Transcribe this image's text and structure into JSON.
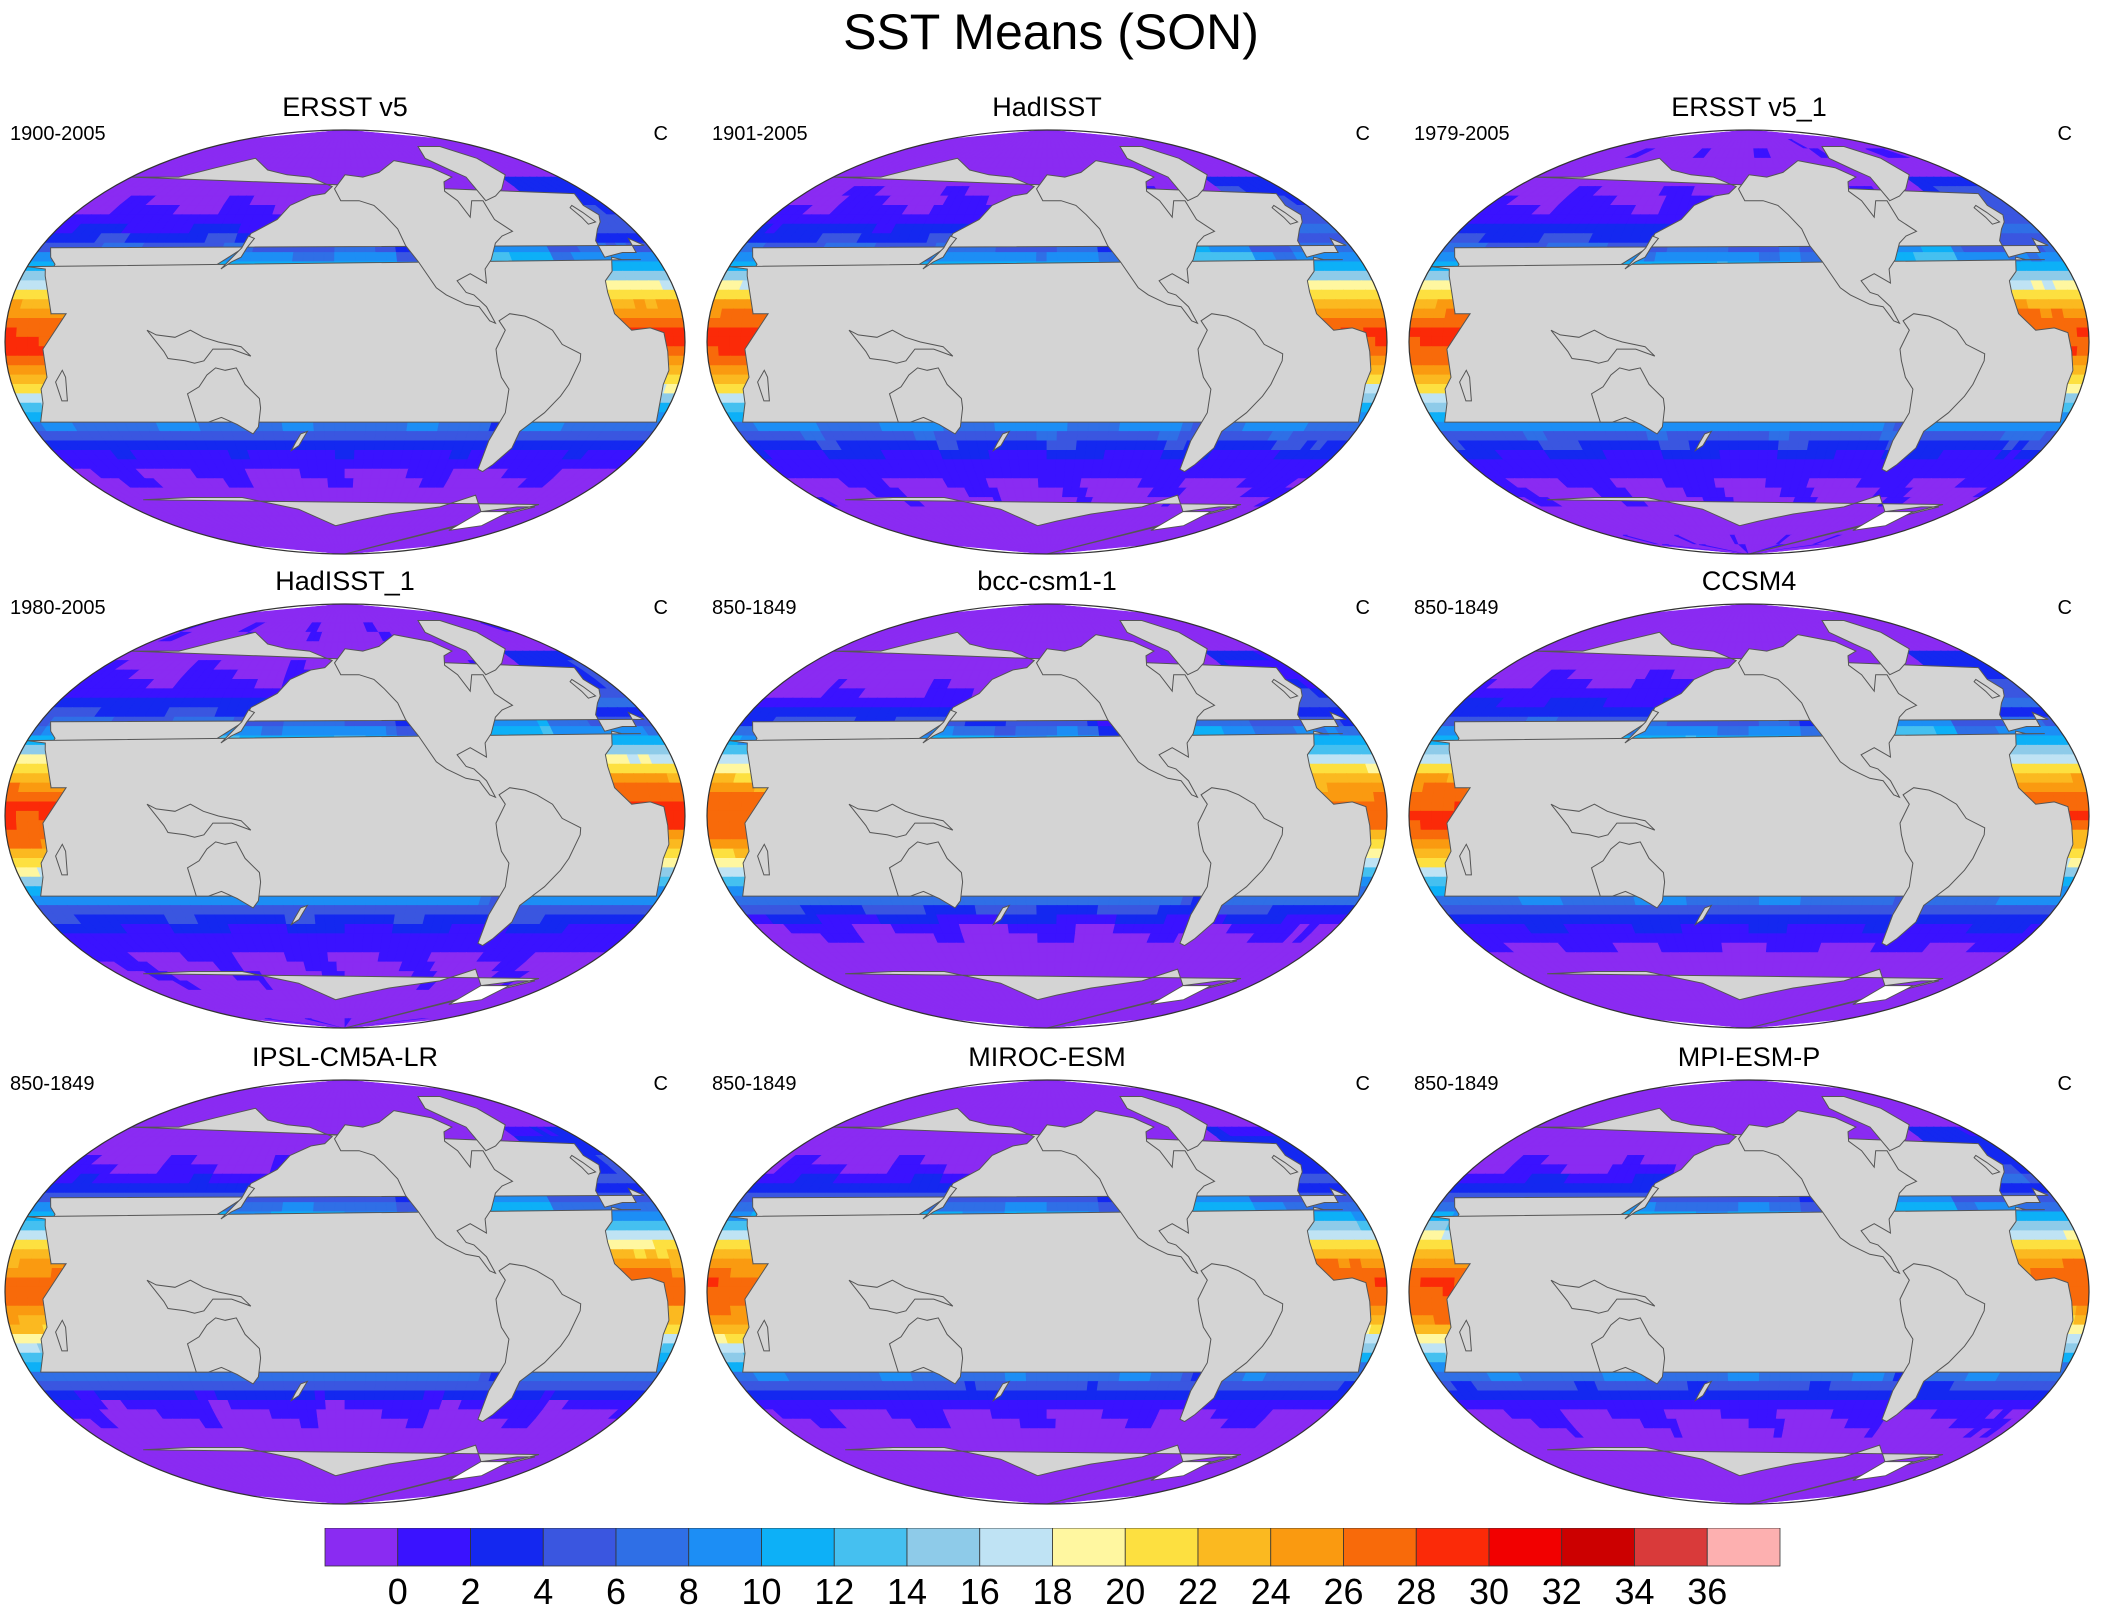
{
  "title": "SST Means (SON)",
  "units": "C",
  "colorbar": {
    "levels": [
      "0",
      "2",
      "4",
      "6",
      "8",
      "10",
      "12",
      "14",
      "16",
      "18",
      "20",
      "22",
      "24",
      "26",
      "28",
      "30",
      "32",
      "34",
      "36"
    ],
    "colors": [
      "#8a2bf2",
      "#3a12ff",
      "#1428f0",
      "#3a56e0",
      "#2f6fe6",
      "#1c8ef5",
      "#0db0f7",
      "#45c0f0",
      "#8ecbe9",
      "#bfe3f4",
      "#fff7a0",
      "#fde040",
      "#fbb920",
      "#fa9a10",
      "#f86a0a",
      "#fb2a08",
      "#f20000",
      "#cc0000",
      "#d93a3a",
      "#fdb0b0"
    ]
  },
  "palette": {
    "land": "#d4d4d4",
    "coast": "#555555",
    "ice": "#ffffff"
  },
  "panels": [
    {
      "title": "ERSST v5",
      "period": "1900-2005",
      "units": "C",
      "resolution": "fine"
    },
    {
      "title": "HadISST",
      "period": "1901-2005",
      "units": "C",
      "resolution": "fine"
    },
    {
      "title": "ERSST v5_1",
      "period": "1979-2005",
      "units": "C",
      "resolution": "fine"
    },
    {
      "title": "HadISST_1",
      "period": "1980-2005",
      "units": "C",
      "resolution": "fine"
    },
    {
      "title": "bcc-csm1-1",
      "period": "850-1849",
      "units": "C",
      "resolution": "coarse"
    },
    {
      "title": "CCSM4",
      "period": "850-1849",
      "units": "C",
      "resolution": "fine"
    },
    {
      "title": "IPSL-CM5A-LR",
      "period": "850-1849",
      "units": "C",
      "resolution": "coarse"
    },
    {
      "title": "MIROC-ESM",
      "period": "850-1849",
      "units": "C",
      "resolution": "coarse"
    },
    {
      "title": "MPI-ESM-P",
      "period": "850-1849",
      "units": "C",
      "resolution": "coarse"
    }
  ]
}
